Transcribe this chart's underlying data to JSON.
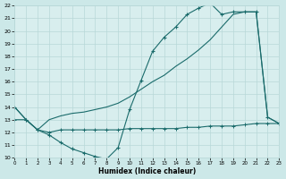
{
  "xlabel": "Humidex (Indice chaleur)",
  "xlim": [
    0,
    23
  ],
  "ylim": [
    10,
    22
  ],
  "xticks": [
    0,
    1,
    2,
    3,
    4,
    5,
    6,
    7,
    8,
    9,
    10,
    11,
    12,
    13,
    14,
    15,
    16,
    17,
    18,
    19,
    20,
    21,
    22,
    23
  ],
  "yticks": [
    10,
    11,
    12,
    13,
    14,
    15,
    16,
    17,
    18,
    19,
    20,
    21,
    22
  ],
  "bg_color": "#cce8e8",
  "plot_bg": "#d8eeee",
  "line_color": "#1a6b6b",
  "grid_color": "#b8d8d8",
  "line1_x": [
    0,
    1,
    2,
    3,
    4,
    5,
    6,
    7,
    8,
    9,
    10,
    11,
    12,
    13,
    14,
    15,
    16,
    17,
    18,
    19,
    20,
    21,
    22,
    23
  ],
  "line1_y": [
    14,
    13,
    12.2,
    11.8,
    11.2,
    10.7,
    10.4,
    10.1,
    9.9,
    10.8,
    13.8,
    16.1,
    18.4,
    19.5,
    20.3,
    21.3,
    21.8,
    22.2,
    21.3,
    21.5,
    21.5,
    21.5,
    13.2,
    12.7
  ],
  "line2_x": [
    0,
    1,
    2,
    3,
    4,
    5,
    6,
    7,
    8,
    9,
    10,
    11,
    12,
    13,
    14,
    15,
    16,
    17,
    18,
    19,
    20,
    21,
    22,
    23
  ],
  "line2_y": [
    14,
    13,
    12.2,
    13.0,
    13.3,
    13.5,
    13.6,
    13.8,
    14.0,
    14.3,
    14.8,
    15.4,
    16.0,
    16.5,
    17.2,
    17.8,
    18.5,
    19.3,
    20.3,
    21.3,
    21.5,
    21.5,
    13.2,
    12.7
  ],
  "line3_x": [
    0,
    1,
    2,
    3,
    4,
    5,
    6,
    7,
    8,
    9,
    10,
    11,
    12,
    13,
    14,
    15,
    16,
    17,
    18,
    19,
    20,
    21,
    22,
    23
  ],
  "line3_y": [
    13,
    13,
    12.2,
    12.0,
    12.2,
    12.2,
    12.2,
    12.2,
    12.2,
    12.2,
    12.3,
    12.3,
    12.3,
    12.3,
    12.3,
    12.4,
    12.4,
    12.5,
    12.5,
    12.5,
    12.6,
    12.7,
    12.7,
    12.7
  ]
}
